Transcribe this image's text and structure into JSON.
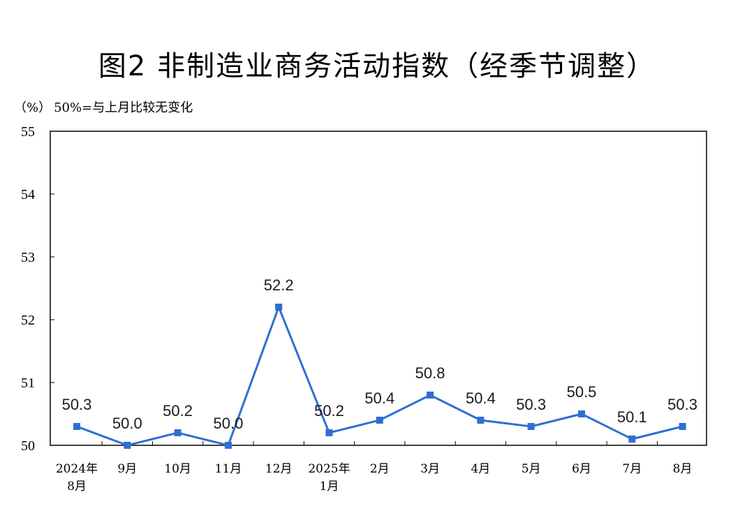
{
  "chart_data": {
    "type": "line",
    "title": "图2  非制造业商务活动指数（经季节调整）",
    "unit": "（%）",
    "note": "50%=与上月比较无变化",
    "categories": [
      [
        "2024年",
        "8月"
      ],
      [
        "9月"
      ],
      [
        "10月"
      ],
      [
        "11月"
      ],
      [
        "12月"
      ],
      [
        "2025年",
        "1月"
      ],
      [
        "2月"
      ],
      [
        "3月"
      ],
      [
        "4月"
      ],
      [
        "5月"
      ],
      [
        "6月"
      ],
      [
        "7月"
      ],
      [
        "8月"
      ]
    ],
    "series": [
      {
        "values": [
          50.3,
          50.0,
          50.2,
          50.0,
          52.2,
          50.2,
          50.4,
          50.8,
          50.4,
          50.3,
          50.5,
          50.1,
          50.3
        ],
        "labels": [
          "50.3",
          "50.0",
          "50.2",
          "50.0",
          "52.2",
          "50.2",
          "50.4",
          "50.8",
          "50.4",
          "50.3",
          "50.5",
          "50.1",
          "50.3"
        ],
        "color": "#2e6fd3"
      }
    ],
    "ylim": [
      50,
      55
    ],
    "yticks": [
      "50",
      "51",
      "52",
      "53",
      "54",
      "55"
    ],
    "grid": false,
    "legend": "none"
  }
}
